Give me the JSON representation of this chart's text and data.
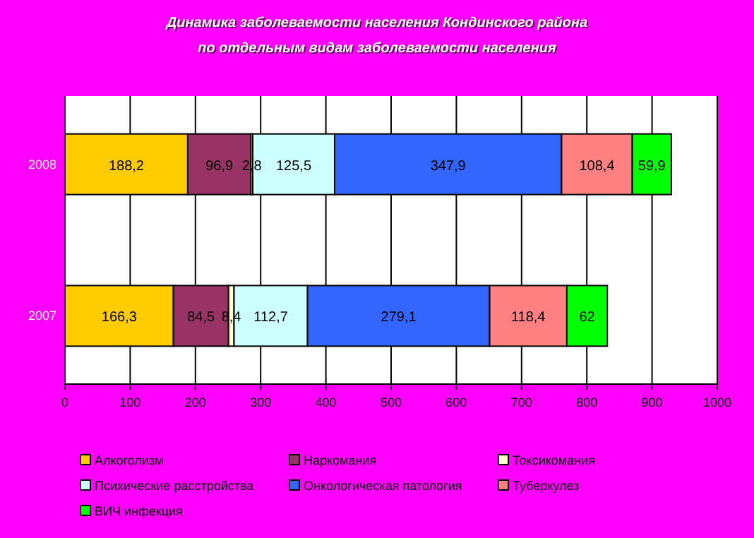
{
  "chart_data": {
    "type": "bar",
    "orientation": "horizontal",
    "stacked": true,
    "title": "Динамика заболеваемости населения Кондинского района",
    "subtitle": "по отдельным видам заболеваемости населения",
    "categories": [
      "2008",
      "2007"
    ],
    "xlim": [
      0,
      1000
    ],
    "xticks": [
      0,
      100,
      200,
      300,
      400,
      500,
      600,
      700,
      800,
      900,
      1000
    ],
    "grid": "x",
    "legend": "bottom",
    "series": [
      {
        "name": "Алкоголизм",
        "color": "#ffcc00",
        "values": [
          188.2,
          166.3
        ],
        "value_labels": [
          "188,2",
          "166,3"
        ]
      },
      {
        "name": "Наркомания",
        "color": "#993366",
        "values": [
          96.9,
          84.5
        ],
        "value_labels": [
          "96,9",
          "84,5"
        ]
      },
      {
        "name": "Токсикомания",
        "color": "#ffffcc",
        "values": [
          2.8,
          8.4
        ],
        "value_labels": [
          "2,8",
          "8,4"
        ]
      },
      {
        "name": "Психические расстройства",
        "color": "#ccffff",
        "values": [
          125.5,
          112.7
        ],
        "value_labels": [
          "125,5",
          "112,7"
        ]
      },
      {
        "name": "Онкологическая патология",
        "color": "#3366ff",
        "values": [
          347.9,
          279.1
        ],
        "value_labels": [
          "347,9",
          "279,1"
        ]
      },
      {
        "name": "Туберкулез",
        "color": "#ff8080",
        "values": [
          108.4,
          118.4
        ],
        "value_labels": [
          "108,4",
          "118,4"
        ]
      },
      {
        "name": "ВИЧ инфекция",
        "color": "#00ff00",
        "values": [
          59.9,
          62
        ],
        "value_labels": [
          "59,9",
          "62"
        ]
      }
    ]
  }
}
